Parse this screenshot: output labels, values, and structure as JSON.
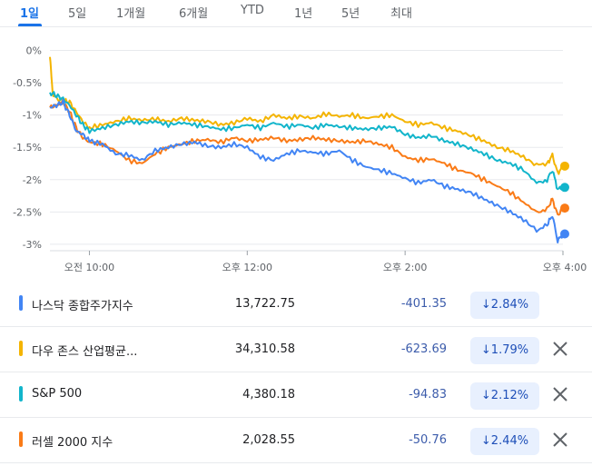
{
  "tabs": [
    {
      "label": "1일",
      "active": true
    },
    {
      "label": "5일",
      "active": false
    },
    {
      "label": "1개월",
      "active": false
    },
    {
      "label": "6개월",
      "active": false
    },
    {
      "label": "YTD",
      "active": false
    },
    {
      "label": "1년",
      "active": false
    },
    {
      "label": "5년",
      "active": false
    },
    {
      "label": "최대",
      "active": false
    }
  ],
  "chart_data": {
    "type": "line",
    "y_ticks": [
      "0%",
      "-0.5%",
      "-1%",
      "-1.5%",
      "-2%",
      "-2.5%",
      "-3%"
    ],
    "y_tick_values": [
      0,
      -0.5,
      -1,
      -1.5,
      -2,
      -2.5,
      -3
    ],
    "x_ticks": [
      "오전 10:00",
      "오후 12:00",
      "오후 2:00",
      "오후 4:00"
    ],
    "x_tick_values": [
      30,
      150,
      270,
      390
    ],
    "ylim": [
      -3.1,
      0.05
    ],
    "xlim": [
      0,
      390
    ],
    "grid": true,
    "series": [
      {
        "color": "#f4b400",
        "points": [
          [
            0,
            -0.1
          ],
          [
            2,
            -0.65
          ],
          [
            5,
            -0.75
          ],
          [
            10,
            -0.78
          ],
          [
            15,
            -0.8
          ],
          [
            20,
            -0.95
          ],
          [
            25,
            -1.1
          ],
          [
            30,
            -1.2
          ],
          [
            40,
            -1.15
          ],
          [
            50,
            -1.1
          ],
          [
            60,
            -1.05
          ],
          [
            70,
            -1.08
          ],
          [
            80,
            -1.06
          ],
          [
            90,
            -1.1
          ],
          [
            100,
            -1.05
          ],
          [
            110,
            -1.08
          ],
          [
            120,
            -1.1
          ],
          [
            130,
            -1.15
          ],
          [
            140,
            -1.12
          ],
          [
            150,
            -1.05
          ],
          [
            160,
            -1.1
          ],
          [
            170,
            -1.0
          ],
          [
            180,
            -1.05
          ],
          [
            190,
            -1.02
          ],
          [
            200,
            -1.05
          ],
          [
            210,
            -0.98
          ],
          [
            220,
            -1.02
          ],
          [
            230,
            -1.0
          ],
          [
            240,
            -1.05
          ],
          [
            250,
            -1.02
          ],
          [
            260,
            -1.0
          ],
          [
            270,
            -1.1
          ],
          [
            280,
            -1.15
          ],
          [
            290,
            -1.12
          ],
          [
            300,
            -1.2
          ],
          [
            310,
            -1.25
          ],
          [
            320,
            -1.32
          ],
          [
            330,
            -1.4
          ],
          [
            340,
            -1.5
          ],
          [
            350,
            -1.55
          ],
          [
            360,
            -1.65
          ],
          [
            370,
            -1.78
          ],
          [
            378,
            -1.75
          ],
          [
            382,
            -1.62
          ],
          [
            386,
            -1.9
          ],
          [
            390,
            -1.79
          ]
        ]
      },
      {
        "color": "#12b5cb",
        "points": [
          [
            0,
            -0.65
          ],
          [
            5,
            -0.7
          ],
          [
            10,
            -0.75
          ],
          [
            15,
            -0.85
          ],
          [
            20,
            -1.0
          ],
          [
            25,
            -1.15
          ],
          [
            30,
            -1.25
          ],
          [
            40,
            -1.2
          ],
          [
            50,
            -1.15
          ],
          [
            60,
            -1.1
          ],
          [
            70,
            -1.12
          ],
          [
            80,
            -1.1
          ],
          [
            90,
            -1.15
          ],
          [
            100,
            -1.12
          ],
          [
            110,
            -1.15
          ],
          [
            120,
            -1.18
          ],
          [
            130,
            -1.22
          ],
          [
            140,
            -1.2
          ],
          [
            150,
            -1.15
          ],
          [
            160,
            -1.2
          ],
          [
            170,
            -1.12
          ],
          [
            180,
            -1.18
          ],
          [
            190,
            -1.15
          ],
          [
            200,
            -1.2
          ],
          [
            210,
            -1.15
          ],
          [
            220,
            -1.18
          ],
          [
            230,
            -1.2
          ],
          [
            240,
            -1.22
          ],
          [
            250,
            -1.2
          ],
          [
            260,
            -1.18
          ],
          [
            270,
            -1.3
          ],
          [
            280,
            -1.35
          ],
          [
            290,
            -1.32
          ],
          [
            300,
            -1.4
          ],
          [
            310,
            -1.45
          ],
          [
            320,
            -1.52
          ],
          [
            330,
            -1.6
          ],
          [
            340,
            -1.7
          ],
          [
            350,
            -1.75
          ],
          [
            360,
            -1.85
          ],
          [
            370,
            -2.05
          ],
          [
            378,
            -2.0
          ],
          [
            382,
            -1.85
          ],
          [
            386,
            -2.15
          ],
          [
            390,
            -2.12
          ]
        ]
      },
      {
        "color": "#fa7b17",
        "points": [
          [
            0,
            -0.88
          ],
          [
            5,
            -0.85
          ],
          [
            10,
            -0.8
          ],
          [
            15,
            -0.95
          ],
          [
            20,
            -1.2
          ],
          [
            25,
            -1.35
          ],
          [
            30,
            -1.42
          ],
          [
            40,
            -1.45
          ],
          [
            50,
            -1.55
          ],
          [
            60,
            -1.7
          ],
          [
            70,
            -1.75
          ],
          [
            80,
            -1.6
          ],
          [
            90,
            -1.5
          ],
          [
            100,
            -1.45
          ],
          [
            110,
            -1.4
          ],
          [
            120,
            -1.38
          ],
          [
            130,
            -1.42
          ],
          [
            140,
            -1.35
          ],
          [
            150,
            -1.4
          ],
          [
            160,
            -1.38
          ],
          [
            170,
            -1.35
          ],
          [
            180,
            -1.4
          ],
          [
            190,
            -1.38
          ],
          [
            200,
            -1.35
          ],
          [
            210,
            -1.38
          ],
          [
            220,
            -1.4
          ],
          [
            230,
            -1.42
          ],
          [
            240,
            -1.4
          ],
          [
            250,
            -1.45
          ],
          [
            260,
            -1.5
          ],
          [
            270,
            -1.65
          ],
          [
            280,
            -1.7
          ],
          [
            290,
            -1.68
          ],
          [
            300,
            -1.75
          ],
          [
            310,
            -1.85
          ],
          [
            320,
            -1.9
          ],
          [
            330,
            -2.0
          ],
          [
            340,
            -2.1
          ],
          [
            350,
            -2.2
          ],
          [
            360,
            -2.35
          ],
          [
            370,
            -2.5
          ],
          [
            378,
            -2.45
          ],
          [
            382,
            -2.3
          ],
          [
            386,
            -2.55
          ],
          [
            390,
            -2.44
          ]
        ]
      },
      {
        "color": "#4285f4",
        "points": [
          [
            0,
            -0.88
          ],
          [
            5,
            -0.85
          ],
          [
            10,
            -0.8
          ],
          [
            15,
            -1.0
          ],
          [
            20,
            -1.25
          ],
          [
            25,
            -1.3
          ],
          [
            30,
            -1.4
          ],
          [
            40,
            -1.45
          ],
          [
            50,
            -1.6
          ],
          [
            60,
            -1.62
          ],
          [
            70,
            -1.7
          ],
          [
            80,
            -1.55
          ],
          [
            90,
            -1.5
          ],
          [
            100,
            -1.45
          ],
          [
            110,
            -1.42
          ],
          [
            120,
            -1.48
          ],
          [
            130,
            -1.5
          ],
          [
            140,
            -1.45
          ],
          [
            150,
            -1.5
          ],
          [
            160,
            -1.65
          ],
          [
            170,
            -1.7
          ],
          [
            180,
            -1.6
          ],
          [
            190,
            -1.55
          ],
          [
            200,
            -1.58
          ],
          [
            210,
            -1.6
          ],
          [
            220,
            -1.55
          ],
          [
            230,
            -1.7
          ],
          [
            240,
            -1.8
          ],
          [
            250,
            -1.85
          ],
          [
            260,
            -1.9
          ],
          [
            270,
            -1.98
          ],
          [
            280,
            -2.05
          ],
          [
            290,
            -2.0
          ],
          [
            300,
            -2.1
          ],
          [
            310,
            -2.15
          ],
          [
            320,
            -2.2
          ],
          [
            330,
            -2.3
          ],
          [
            340,
            -2.4
          ],
          [
            350,
            -2.5
          ],
          [
            360,
            -2.62
          ],
          [
            370,
            -2.78
          ],
          [
            378,
            -2.7
          ],
          [
            382,
            -2.55
          ],
          [
            386,
            -2.95
          ],
          [
            390,
            -2.84
          ]
        ]
      }
    ]
  },
  "indices": [
    {
      "name": "나스닥 종합주가지수",
      "price": "13,722.75",
      "change": "-401.35",
      "pct": "2.84%",
      "color": "#4285f4",
      "closable": false
    },
    {
      "name": "다우 존스 산업평균...",
      "price": "34,310.58",
      "change": "-623.69",
      "pct": "1.79%",
      "color": "#f4b400",
      "closable": true
    },
    {
      "name": "S&P 500",
      "price": "4,380.18",
      "change": "-94.83",
      "pct": "2.12%",
      "color": "#12b5cb",
      "closable": true
    },
    {
      "name": "러셀 2000 지수",
      "price": "2,028.55",
      "change": "-50.76",
      "pct": "2.44%",
      "color": "#fa7b17",
      "closable": true
    }
  ],
  "icons": {
    "pct_arrow": "arrow-down-icon",
    "close": "close-icon"
  }
}
